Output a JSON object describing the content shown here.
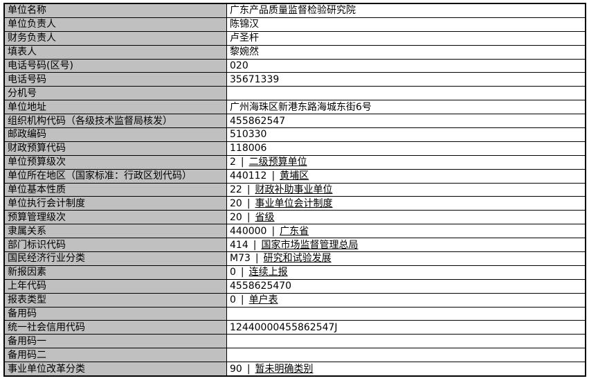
{
  "colors": {
    "label_background": "#c0c0c0",
    "value_background": "#ffffff",
    "border": "#000000",
    "text": "#000000"
  },
  "table": {
    "separator": "|",
    "rows": [
      {
        "label": "单位名称",
        "value": "广东产品质量监督检验研究院"
      },
      {
        "label": "单位负责人",
        "value": "陈锦汉"
      },
      {
        "label": "财务负责人",
        "value": "卢圣杆"
      },
      {
        "label": "填表人",
        "value": "黎婉然"
      },
      {
        "label": "电话号码(区号)",
        "value": "020"
      },
      {
        "label": "电话号码",
        "value": "35671339"
      },
      {
        "label": "分机号",
        "value": ""
      },
      {
        "label": "单位地址",
        "value": "广州海珠区新港东路海城东街6号"
      },
      {
        "label": "组织机构代码（各级技术监督局核发）",
        "value": "455862547"
      },
      {
        "label": "邮政编码",
        "value": "510330"
      },
      {
        "label": "财政预算代码",
        "value": "118006"
      },
      {
        "label": "单位预算级次",
        "code": "2",
        "value": "二级预算单位"
      },
      {
        "label": "单位所在地区（国家标准：行政区划代码）",
        "code": "440112",
        "value": "黄埔区"
      },
      {
        "label": "单位基本性质",
        "code": "22",
        "value": "财政补助事业单位"
      },
      {
        "label": "单位执行会计制度",
        "code": "20",
        "value": "事业单位会计制度"
      },
      {
        "label": "预算管理级次",
        "code": "20",
        "value": "省级"
      },
      {
        "label": "隶属关系",
        "code": "440000",
        "value": "广东省"
      },
      {
        "label": "部门标识代码",
        "code": "414",
        "value": "国家市场监督管理总局"
      },
      {
        "label": "国民经济行业分类",
        "code": "M73",
        "value": "研究和试验发展"
      },
      {
        "label": "新报因素",
        "code": "0",
        "value": "连续上报"
      },
      {
        "label": "上年代码",
        "value": "4558625470"
      },
      {
        "label": "报表类型",
        "code": "0",
        "value": "单户表"
      },
      {
        "label": "备用码",
        "value": ""
      },
      {
        "label": "统一社会信用代码",
        "value": "12440000455862547J"
      },
      {
        "label": "备用码一",
        "value": ""
      },
      {
        "label": "备用码二",
        "value": ""
      },
      {
        "label": "事业单位改革分类",
        "code": "90",
        "value": "暂未明确类别"
      }
    ]
  }
}
